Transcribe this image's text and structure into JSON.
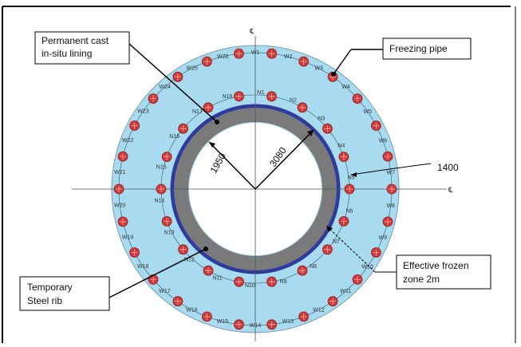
{
  "callouts": {
    "lining_line1": "Permanent cast",
    "lining_line2": "in-situ lining",
    "freezing_pipe": "Freezing pipe",
    "temp_rib_line1": "Temporary",
    "temp_rib_line2": "Steel rib",
    "frozen_line1": "Effective frozen",
    "frozen_line2": "zone 2m"
  },
  "dimensions": {
    "inner_radius": "1950",
    "outer_radius": "3080",
    "pipe_spacing": "1400"
  },
  "centerline_symbol": "℄",
  "outer_ring_pipes": [
    "W1",
    "W2",
    "W3",
    "W4",
    "W5",
    "W6",
    "W7",
    "W8",
    "W9",
    "W10",
    "W11",
    "W12",
    "W13",
    "W14",
    "W15",
    "W16",
    "W17",
    "W18",
    "W19",
    "W20",
    "W21",
    "W22",
    "W23",
    "W24",
    "W25",
    "W26"
  ],
  "inner_ring_pipes": [
    "N1",
    "N2",
    "N3",
    "N4",
    "N5",
    "N6",
    "N7",
    "N8",
    "N9",
    "N10",
    "N11",
    "N12",
    "N13",
    "N14",
    "N15",
    "N16",
    "N17",
    "N18"
  ],
  "colors": {
    "frozen_zone": "#a8daf0",
    "pipe": "#d23a3a",
    "lining": "#7a7a7a",
    "steel_rib": "#2e3a9e"
  }
}
